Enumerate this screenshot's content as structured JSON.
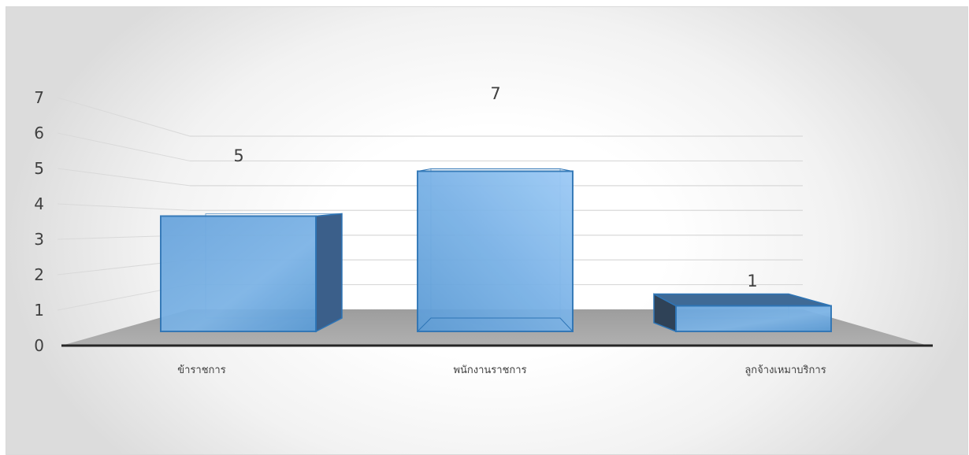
{
  "chart_data": {
    "type": "bar",
    "title": "",
    "xlabel": "",
    "ylabel": "",
    "categories": [
      "ข้าราชการ",
      "พนักงานราชการ",
      "ลูกจ้างเหมาบริการ"
    ],
    "values": [
      5,
      7,
      1
    ],
    "data_labels": [
      "5",
      "7",
      "1"
    ],
    "ylim": [
      0,
      7
    ],
    "yticks": [
      "0",
      "1",
      "2",
      "3",
      "4",
      "5",
      "6",
      "7"
    ],
    "grid": true,
    "legend": "none",
    "style": "3d-column",
    "colors": {
      "bar_face": "#5b9bd5",
      "bar_edge": "#2e75b6",
      "bar_side": "#3b5f8a",
      "floor": "#a6a6a6",
      "axis": "#262626",
      "gridline": "#d9d9d9"
    }
  }
}
